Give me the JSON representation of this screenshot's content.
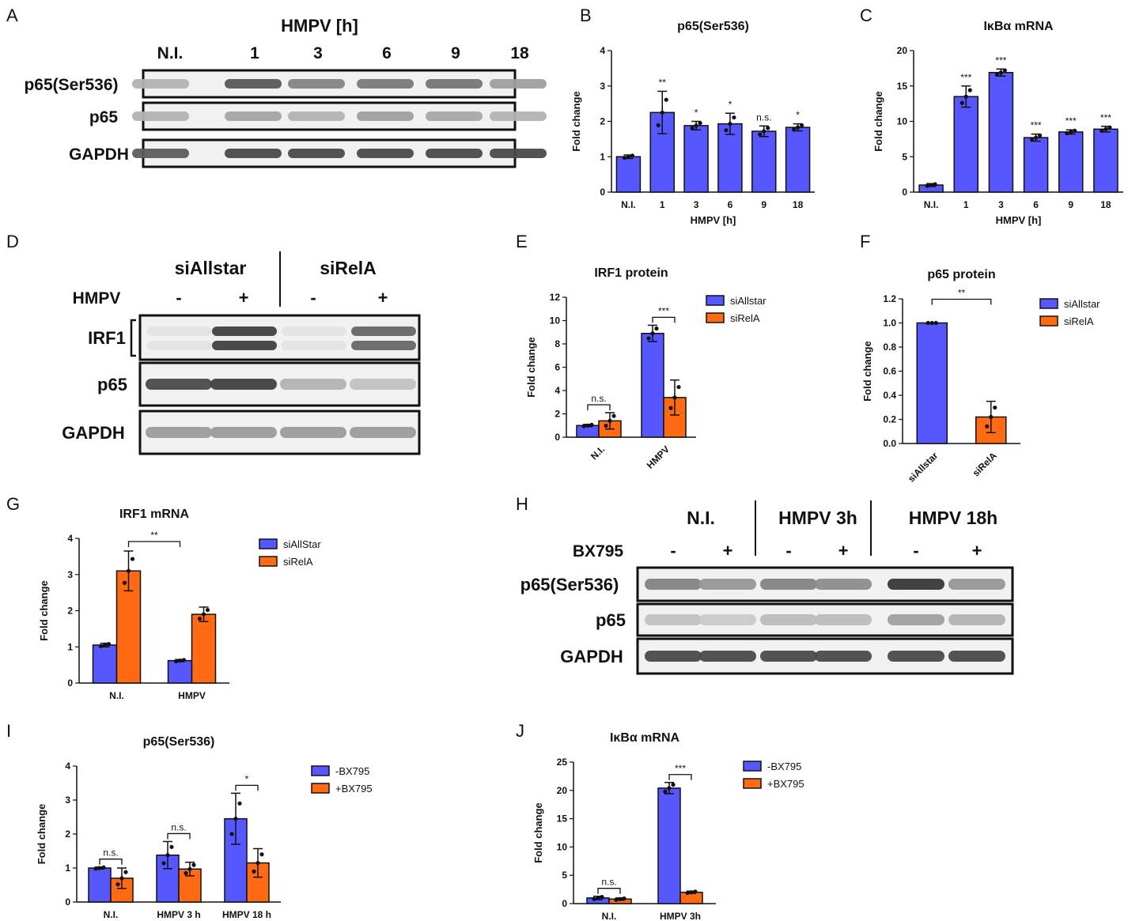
{
  "panels": {
    "A": {
      "letter": "A",
      "header": "HMPV [h]",
      "lanes": [
        "N.I.",
        "1",
        "3",
        "6",
        "9",
        "18"
      ],
      "rows": [
        {
          "label": "p65(Ser536)",
          "bands": [
            0.3,
            0.78,
            0.55,
            0.6,
            0.62,
            0.4
          ]
        },
        {
          "label": "p65",
          "bands": [
            0.3,
            0.38,
            0.3,
            0.4,
            0.36,
            0.3
          ]
        },
        {
          "label": "GAPDH",
          "bands": [
            0.75,
            0.85,
            0.85,
            0.85,
            0.85,
            0.85
          ]
        }
      ]
    },
    "D": {
      "letter": "D",
      "groups": [
        "siAllstar",
        "siRelA"
      ],
      "treat_label": "HMPV",
      "treat_signs": [
        "-",
        "+",
        "-",
        "+"
      ],
      "rows": [
        {
          "label": "IRF1",
          "bands": [
            0.04,
            0.9,
            0.04,
            0.7
          ],
          "doublet": true
        },
        {
          "label": "p65",
          "bands": [
            0.85,
            0.9,
            0.3,
            0.22
          ]
        },
        {
          "label": "GAPDH",
          "bands": [
            0.42,
            0.42,
            0.42,
            0.42
          ]
        }
      ]
    },
    "H": {
      "letter": "H",
      "groups": [
        "N.I.",
        "HMPV 3h",
        "HMPV 18h"
      ],
      "treat_label": "BX795",
      "treat_signs": [
        "-",
        "+",
        "-",
        "+",
        "-",
        "+"
      ],
      "rows": [
        {
          "label": "p65(Ser536)",
          "bands": [
            0.55,
            0.45,
            0.55,
            0.5,
            0.95,
            0.45
          ]
        },
        {
          "label": "p65",
          "bands": [
            0.22,
            0.18,
            0.25,
            0.25,
            0.4,
            0.3
          ]
        },
        {
          "label": "GAPDH",
          "bands": [
            0.85,
            0.85,
            0.85,
            0.85,
            0.85,
            0.85
          ]
        }
      ]
    }
  },
  "chart_data": [
    {
      "id": "B",
      "letter": "B",
      "type": "bar",
      "title": "p65(Ser536)",
      "xlabel": "HMPV [h]",
      "ylabel": "Fold change",
      "categories": [
        "N.I.",
        "1",
        "3",
        "6",
        "9",
        "18"
      ],
      "series": [
        {
          "name": "",
          "color": "#5757ff",
          "values": [
            1.0,
            2.25,
            1.88,
            1.93,
            1.72,
            1.83
          ],
          "errors": [
            0.05,
            0.6,
            0.12,
            0.3,
            0.15,
            0.1
          ]
        }
      ],
      "sig": [
        "",
        "**",
        "*",
        "*",
        "n.s.",
        "*"
      ],
      "ylim": [
        0,
        4
      ],
      "yticks": [
        "0",
        "1",
        "2",
        "3",
        "4"
      ]
    },
    {
      "id": "C",
      "letter": "C",
      "type": "bar",
      "title": "IκBα mRNA",
      "xlabel": "HMPV [h]",
      "ylabel": "Fold change",
      "categories": [
        "N.I.",
        "1",
        "3",
        "6",
        "9",
        "18"
      ],
      "series": [
        {
          "name": "",
          "color": "#5757ff",
          "values": [
            1.0,
            13.5,
            16.9,
            7.7,
            8.5,
            8.9
          ],
          "errors": [
            0.2,
            1.5,
            0.5,
            0.5,
            0.3,
            0.4
          ]
        }
      ],
      "sig": [
        "",
        "***",
        "***",
        "***",
        "***",
        "***"
      ],
      "ylim": [
        0,
        20
      ],
      "yticks": [
        "0",
        "5",
        "10",
        "15",
        "20"
      ]
    },
    {
      "id": "E",
      "letter": "E",
      "type": "bar",
      "title": "IRF1 protein",
      "xlabel": "",
      "ylabel": "Fold change",
      "categories": [
        "N.I.",
        "HMPV"
      ],
      "series": [
        {
          "name": "siAllstar",
          "color": "#5757ff",
          "values": [
            1.0,
            8.9
          ],
          "errors": [
            0.1,
            0.7
          ]
        },
        {
          "name": "siRelA",
          "color": "#ff6a13",
          "values": [
            1.4,
            3.4
          ],
          "errors": [
            0.7,
            1.5
          ]
        }
      ],
      "brackets": [
        {
          "cat": 0,
          "label": "n.s."
        },
        {
          "cat": 1,
          "label": "***"
        }
      ],
      "ylim": [
        0,
        12
      ],
      "yticks": [
        "0",
        "2",
        "4",
        "6",
        "8",
        "10",
        "12"
      ],
      "rotated_xticks": true,
      "legend": "right"
    },
    {
      "id": "F",
      "letter": "F",
      "type": "bar",
      "title": "p65 protein",
      "xlabel": "",
      "ylabel": "Fold change",
      "categories": [
        "siAllstar",
        "siRelA"
      ],
      "series": [
        {
          "name": "",
          "color": "",
          "values": [
            1.0,
            0.22
          ],
          "errors": [
            0.0,
            0.13
          ],
          "colors": [
            "#5757ff",
            "#ff6a13"
          ]
        }
      ],
      "legend_entries": [
        {
          "name": "siAllstar",
          "color": "#5757ff"
        },
        {
          "name": "siRelA",
          "color": "#ff6a13"
        }
      ],
      "brackets": [
        {
          "span": [
            0,
            1
          ],
          "label": "**"
        }
      ],
      "ylim": [
        0,
        1.2
      ],
      "yticks": [
        "0.0",
        "0.2",
        "0.4",
        "0.6",
        "0.8",
        "1.0",
        "1.2"
      ],
      "rotated_xticks": true,
      "legend": "right"
    },
    {
      "id": "G",
      "letter": "G",
      "type": "bar",
      "title": "IRF1 mRNA",
      "xlabel": "",
      "ylabel": "Fold change",
      "categories": [
        "N.I.",
        "HMPV"
      ],
      "series": [
        {
          "name": "siAllStar",
          "color": "#5757ff",
          "values": [
            1.05,
            0.62
          ],
          "errors": [
            0.05,
            0.03
          ]
        },
        {
          "name": "siRelA",
          "color": "#ff6a13",
          "values": [
            3.1,
            1.9
          ],
          "errors": [
            0.55,
            0.2
          ]
        }
      ],
      "brackets": [
        {
          "pair": [
            [
              0,
              1
            ],
            [
              1,
              0
            ]
          ],
          "label": "**"
        }
      ],
      "ylim": [
        0,
        4
      ],
      "yticks": [
        "0",
        "1",
        "2",
        "3",
        "4"
      ],
      "legend": "right"
    },
    {
      "id": "I",
      "letter": "I",
      "type": "bar",
      "title": "p65(Ser536)",
      "xlabel": "",
      "ylabel": "Fold change",
      "categories": [
        "N.I.",
        "HMPV 3 h",
        "HMPV 18 h"
      ],
      "series": [
        {
          "name": "-BX795",
          "color": "#5757ff",
          "values": [
            1.0,
            1.38,
            2.45
          ],
          "errors": [
            0.03,
            0.4,
            0.75
          ]
        },
        {
          "name": "+BX795",
          "color": "#ff6a13",
          "values": [
            0.7,
            0.97,
            1.15
          ],
          "errors": [
            0.3,
            0.2,
            0.42
          ]
        }
      ],
      "brackets": [
        {
          "cat": 0,
          "label": "n.s."
        },
        {
          "cat": 1,
          "label": "n.s."
        },
        {
          "cat": 2,
          "label": "*"
        }
      ],
      "ylim": [
        0,
        4
      ],
      "yticks": [
        "0",
        "1",
        "2",
        "3",
        "4"
      ],
      "legend": "right"
    },
    {
      "id": "J",
      "letter": "J",
      "type": "bar",
      "title": "IκBα mRNA",
      "xlabel": "",
      "ylabel": "Fold change",
      "categories": [
        "N.I.",
        "HMPV 3h"
      ],
      "series": [
        {
          "name": "-BX795",
          "color": "#5757ff",
          "values": [
            1.0,
            20.4
          ],
          "errors": [
            0.3,
            1.0
          ]
        },
        {
          "name": "+BX795",
          "color": "#ff6a13",
          "values": [
            0.8,
            2.0
          ],
          "errors": [
            0.2,
            0.2
          ]
        }
      ],
      "brackets": [
        {
          "cat": 0,
          "label": "n.s."
        },
        {
          "cat": 1,
          "label": "***"
        }
      ],
      "ylim": [
        0,
        25
      ],
      "yticks": [
        "0",
        "5",
        "10",
        "15",
        "20",
        "25"
      ],
      "legend": "right"
    }
  ]
}
